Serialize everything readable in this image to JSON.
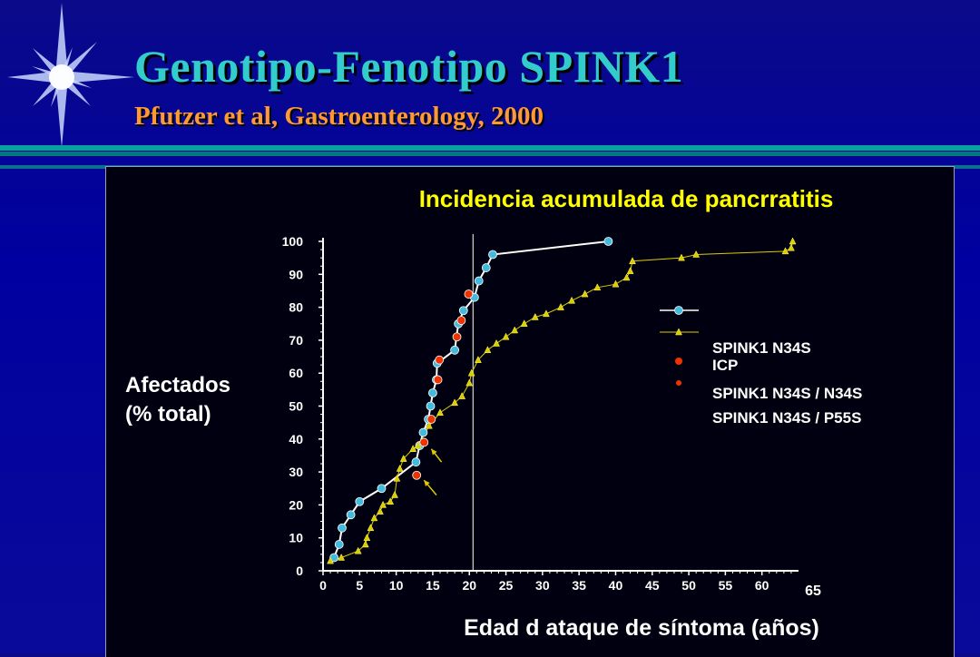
{
  "slide": {
    "title": "Genotipo-Fenotipo SPINK1",
    "subtitle": "Pfutzer et al, Gastroenterology, 2000"
  },
  "colors": {
    "background": "#0000a0",
    "title": "#33cccc",
    "subtitle": "#ff9933",
    "chart_title": "#ffff00",
    "spink1": "#44bbdd",
    "spink1_line": "#ffffff",
    "icp": "#ddcc00",
    "homozygous": "#ee3300",
    "arrow": "#ddcc00"
  },
  "chart_data": {
    "type": "scatter",
    "title": "Incidencia acumulada de pancrratitis",
    "xlabel": "Edad d ataque de síntoma (años)",
    "ylabel_lines": [
      "Afectados",
      "(% total)"
    ],
    "xlim": [
      0,
      65
    ],
    "ylim": [
      0,
      100
    ],
    "x_ticks": [
      "0",
      "5",
      "10",
      "15",
      "20",
      "25",
      "30",
      "35",
      "40",
      "45",
      "50",
      "55",
      "60"
    ],
    "x_extra_tick": "65",
    "y_ticks": [
      "0",
      "10",
      "20",
      "30",
      "40",
      "50",
      "60",
      "70",
      "80",
      "90",
      "100"
    ],
    "reference_line_x": 20.5,
    "legend": {
      "labels": [
        "SPINK1 N34S",
        "ICP",
        "SPINK1 N34S / N34S",
        "SPINK1 N34S / P55S"
      ]
    },
    "series": [
      {
        "name": "SPINK1 N34S",
        "marker": "circle",
        "color": "#44bbdd",
        "line_color": "#ffffff",
        "points": [
          [
            1.5,
            4
          ],
          [
            2.2,
            8
          ],
          [
            2.6,
            13
          ],
          [
            3.8,
            17
          ],
          [
            5,
            21
          ],
          [
            8,
            25
          ],
          [
            12.7,
            33
          ],
          [
            13.2,
            38
          ],
          [
            13.7,
            42
          ],
          [
            14.4,
            46
          ],
          [
            14.7,
            50
          ],
          [
            15,
            54
          ],
          [
            15.5,
            58
          ],
          [
            15.6,
            63
          ],
          [
            18,
            67
          ],
          [
            18.5,
            75
          ],
          [
            19.2,
            79
          ],
          [
            20.7,
            83
          ],
          [
            21.3,
            88
          ],
          [
            22.3,
            92
          ],
          [
            23.2,
            96
          ],
          [
            39,
            100
          ]
        ]
      },
      {
        "name": "ICP",
        "marker": "triangle",
        "color": "#ddcc00",
        "line_color": "#ddcc00",
        "points": [
          [
            1,
            3
          ],
          [
            2.5,
            4
          ],
          [
            4.8,
            6
          ],
          [
            5.8,
            8
          ],
          [
            6,
            10
          ],
          [
            6.5,
            13
          ],
          [
            7,
            16
          ],
          [
            7.8,
            18
          ],
          [
            8.2,
            20
          ],
          [
            9.2,
            21
          ],
          [
            9.8,
            23
          ],
          [
            10.1,
            28
          ],
          [
            10.5,
            31
          ],
          [
            11,
            34
          ],
          [
            12.3,
            37
          ],
          [
            13,
            38
          ],
          [
            14.5,
            44
          ],
          [
            16,
            48
          ],
          [
            18,
            51
          ],
          [
            19,
            53
          ],
          [
            20,
            57
          ],
          [
            20.3,
            60
          ],
          [
            21.2,
            64
          ],
          [
            22.5,
            67
          ],
          [
            23.7,
            69
          ],
          [
            25,
            71
          ],
          [
            26.2,
            73
          ],
          [
            27.5,
            75
          ],
          [
            29,
            77
          ],
          [
            30.5,
            78
          ],
          [
            32.5,
            80
          ],
          [
            34,
            82
          ],
          [
            35.8,
            84
          ],
          [
            37.5,
            86
          ],
          [
            40,
            87
          ],
          [
            41.5,
            89
          ],
          [
            42,
            91
          ],
          [
            42.3,
            94
          ],
          [
            49,
            95
          ],
          [
            51,
            96
          ],
          [
            63.2,
            97
          ],
          [
            64,
            98
          ],
          [
            64.2,
            100
          ]
        ]
      },
      {
        "name": "SPINK1 N34S / N34S",
        "marker": "circle",
        "color": "#ee3300",
        "points": [
          [
            12.8,
            29
          ],
          [
            13.8,
            39
          ],
          [
            14.8,
            46
          ],
          [
            15.7,
            58
          ],
          [
            15.9,
            64
          ],
          [
            18.3,
            71
          ],
          [
            18.9,
            76
          ],
          [
            19.9,
            84
          ]
        ]
      }
    ],
    "arrows": [
      {
        "from": [
          15.5,
          23
        ],
        "to": [
          13.8,
          27.5
        ]
      },
      {
        "from": [
          16.2,
          33
        ],
        "to": [
          14.8,
          37
        ]
      }
    ]
  }
}
